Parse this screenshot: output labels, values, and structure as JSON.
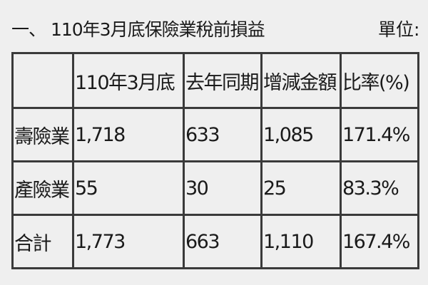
{
  "title": "一、 110年3月底保險業稅前損益",
  "unit_label": "單位:",
  "table": {
    "headers": [
      "",
      "110年3月底",
      "去年同期",
      "增減金額",
      "比率(%)"
    ],
    "rows": [
      [
        "壽險業",
        "1,718",
        "633",
        "1,085",
        "171.4%"
      ],
      [
        "產險業",
        "55",
        "30",
        "25",
        "83.3%"
      ],
      [
        "合計",
        "1,773",
        "663",
        "1,110",
        "167.4%"
      ]
    ]
  }
}
